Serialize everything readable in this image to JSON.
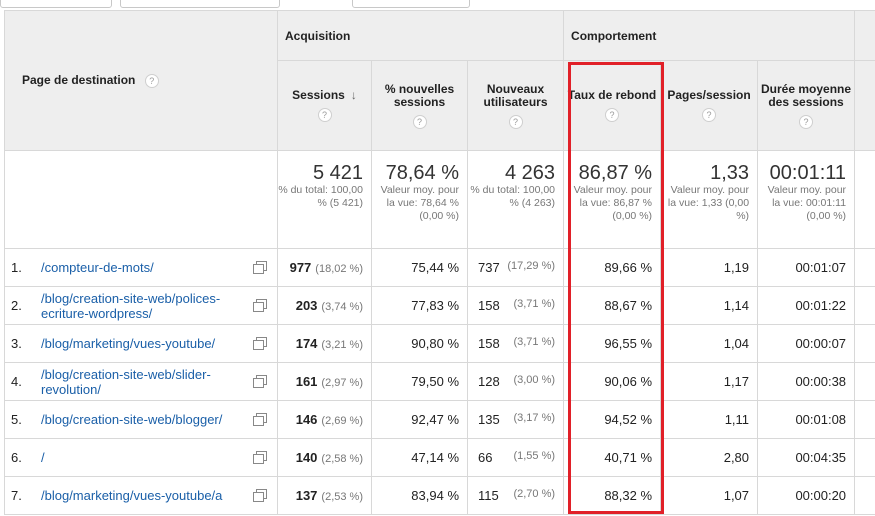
{
  "groups": {
    "acquisition": "Acquisition",
    "behavior": "Comportement"
  },
  "columns": {
    "landing_page": "Page de destination",
    "sessions": "Sessions",
    "new_sessions": "% nouvelles sessions",
    "new_users": "Nouveaux utilisateurs",
    "bounce_rate": "Taux de rebond",
    "pages_session": "Pages/session",
    "avg_duration": "Durée moyenne des sessions"
  },
  "totals": {
    "sessions": {
      "value": "5 421",
      "sub": "% du total: 100,00 % (5 421)"
    },
    "new_sessions": {
      "value": "78,64 %",
      "sub": "Valeur moy. pour la vue: 78,64 % (0,00 %)"
    },
    "new_users": {
      "value": "4 263",
      "sub": "% du total: 100,00 % (4 263)"
    },
    "bounce_rate": {
      "value": "86,87 %",
      "sub": "Valeur moy. pour la vue: 86,87 % (0,00 %)"
    },
    "pages_session": {
      "value": "1,33",
      "sub": "Valeur moy. pour la vue: 1,33 (0,00 %)"
    },
    "avg_duration": {
      "value": "00:01:11",
      "sub": "Valeur moy. pour la vue: 00:01:11 (0,00 %)"
    }
  },
  "rows": [
    {
      "n": "1.",
      "page": "/compteur-de-mots/",
      "sessions": "977",
      "sessions_pct": "(18,02 %)",
      "new_sessions": "75,44 %",
      "new_users": "737",
      "new_users_pct": "(17,29 %)",
      "bounce": "89,66 %",
      "pps": "1,19",
      "dur": "00:01:07"
    },
    {
      "n": "2.",
      "page": "/blog/creation-site-web/polices-ecriture-wordpress/",
      "sessions": "203",
      "sessions_pct": "(3,74 %)",
      "new_sessions": "77,83 %",
      "new_users": "158",
      "new_users_pct": "(3,71 %)",
      "bounce": "88,67 %",
      "pps": "1,14",
      "dur": "00:01:22"
    },
    {
      "n": "3.",
      "page": "/blog/marketing/vues-youtube/",
      "sessions": "174",
      "sessions_pct": "(3,21 %)",
      "new_sessions": "90,80 %",
      "new_users": "158",
      "new_users_pct": "(3,71 %)",
      "bounce": "96,55 %",
      "pps": "1,04",
      "dur": "00:00:07"
    },
    {
      "n": "4.",
      "page": "/blog/creation-site-web/slider-revolution/",
      "sessions": "161",
      "sessions_pct": "(2,97 %)",
      "new_sessions": "79,50 %",
      "new_users": "128",
      "new_users_pct": "(3,00 %)",
      "bounce": "90,06 %",
      "pps": "1,17",
      "dur": "00:00:38"
    },
    {
      "n": "5.",
      "page": "/blog/creation-site-web/blogger/",
      "sessions": "146",
      "sessions_pct": "(2,69 %)",
      "new_sessions": "92,47 %",
      "new_users": "135",
      "new_users_pct": "(3,17 %)",
      "bounce": "94,52 %",
      "pps": "1,11",
      "dur": "00:01:08"
    },
    {
      "n": "6.",
      "page": "/",
      "sessions": "140",
      "sessions_pct": "(2,58 %)",
      "new_sessions": "47,14 %",
      "new_users": "66",
      "new_users_pct": "(1,55 %)",
      "bounce": "40,71 %",
      "pps": "2,80",
      "dur": "00:04:35"
    },
    {
      "n": "7.",
      "page": "/blog/marketing/vues-youtube/a",
      "sessions": "137",
      "sessions_pct": "(2,53 %)",
      "new_sessions": "83,94 %",
      "new_users": "115",
      "new_users_pct": "(2,70 %)",
      "bounce": "88,32 %",
      "pps": "1,07",
      "dur": "00:00:20"
    }
  ],
  "icons": {
    "help": "question-mark-icon",
    "sort": "arrow-down-icon",
    "open": "external-link-icon"
  },
  "colors": {
    "highlight": "#e12028",
    "link": "#1a5fa8"
  }
}
